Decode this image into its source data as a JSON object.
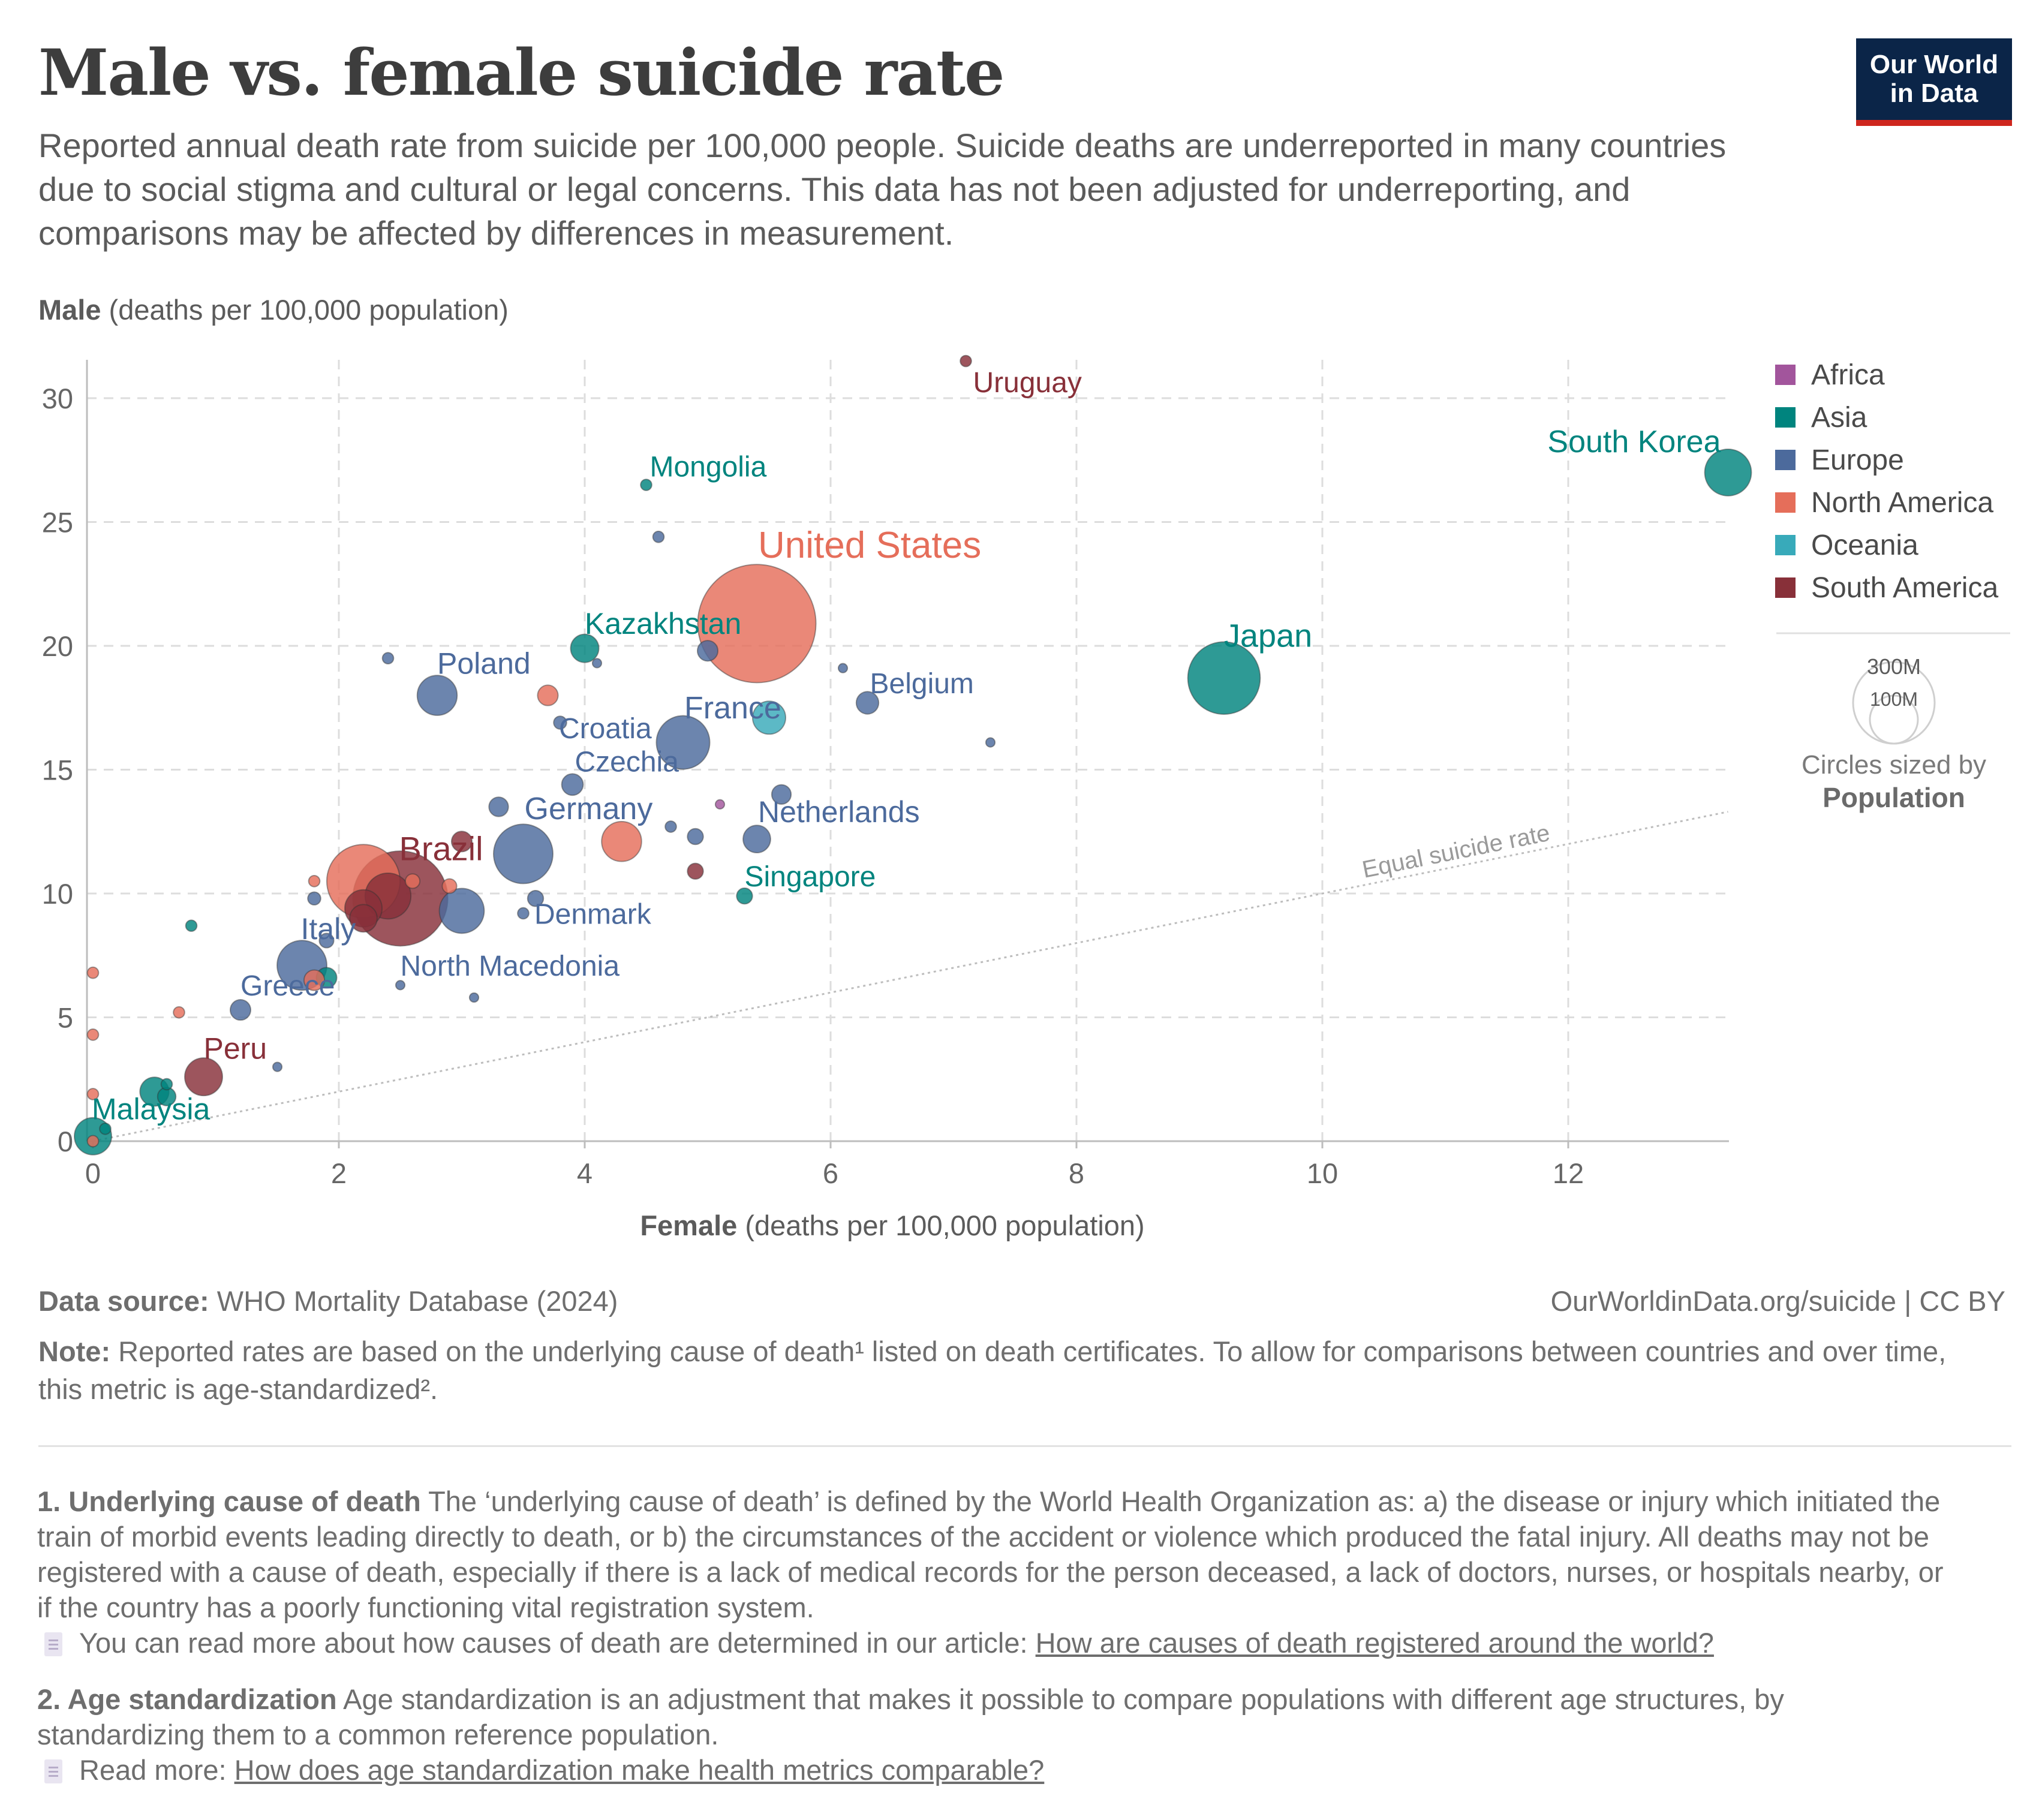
{
  "title": "Male vs. female suicide rate",
  "subtitle": "Reported annual death rate from suicide per 100,000 people. Suicide deaths are underreported in many countries due to social stigma and cultural or legal concerns. This data has not been adjusted for underreporting, and comparisons may be affected by differences in measurement.",
  "logo": {
    "line1": "Our World",
    "line2": "in Data"
  },
  "chart_data": {
    "type": "scatter",
    "ylabel_bold": "Male",
    "ylabel_rest": " (deaths per 100,000 population)",
    "xlabel_bold": "Female",
    "xlabel_rest": " (deaths per 100,000 population)",
    "xlim": [
      0,
      13.3
    ],
    "ylim": [
      0,
      31.5
    ],
    "xticks": [
      0,
      2,
      4,
      6,
      8,
      10,
      12
    ],
    "yticks": [
      0,
      5,
      10,
      15,
      20,
      25,
      30
    ],
    "grid": true,
    "equal_line_label": "Equal suicide rate",
    "legend_position": "right",
    "legend": [
      {
        "name": "Africa",
        "color": "#a2559c"
      },
      {
        "name": "Asia",
        "color": "#00847e"
      },
      {
        "name": "Europe",
        "color": "#4c6a9c"
      },
      {
        "name": "North America",
        "color": "#e56e5a"
      },
      {
        "name": "Oceania",
        "color": "#38aaba"
      },
      {
        "name": "South America",
        "color": "#883039"
      }
    ],
    "size_legend": {
      "big": "300M",
      "small": "100M",
      "caption1": "Circles sized by",
      "caption2": "Population"
    },
    "points": [
      {
        "label": "Uruguay",
        "x": 7.1,
        "y": 31.5,
        "region": "South America",
        "pop": 3
      },
      {
        "label": "South Korea",
        "x": 13.3,
        "y": 27.0,
        "region": "Asia",
        "pop": 52
      },
      {
        "label": "Mongolia",
        "x": 4.5,
        "y": 26.5,
        "region": "Asia",
        "pop": 3
      },
      {
        "label": "",
        "x": 4.6,
        "y": 24.4,
        "region": "Europe",
        "pop": 3
      },
      {
        "label": "United States",
        "x": 5.4,
        "y": 20.9,
        "region": "North America",
        "pop": 333
      },
      {
        "label": "Kazakhstan",
        "x": 4.0,
        "y": 19.9,
        "region": "Asia",
        "pop": 19
      },
      {
        "label": "",
        "x": 5.0,
        "y": 19.8,
        "region": "Europe",
        "pop": 10
      },
      {
        "label": "",
        "x": 4.1,
        "y": 19.3,
        "region": "Europe",
        "pop": 2
      },
      {
        "label": "",
        "x": 2.4,
        "y": 19.5,
        "region": "Europe",
        "pop": 3
      },
      {
        "label": "",
        "x": 6.1,
        "y": 19.1,
        "region": "Europe",
        "pop": 2
      },
      {
        "label": "Japan",
        "x": 9.2,
        "y": 18.7,
        "region": "Asia",
        "pop": 125
      },
      {
        "label": "Poland",
        "x": 2.8,
        "y": 18.0,
        "region": "Europe",
        "pop": 38
      },
      {
        "label": "",
        "x": 3.7,
        "y": 18.0,
        "region": "North America",
        "pop": 10
      },
      {
        "label": "Belgium",
        "x": 6.3,
        "y": 17.7,
        "region": "Europe",
        "pop": 12
      },
      {
        "label": "Croatia",
        "x": 3.8,
        "y": 16.9,
        "region": "Europe",
        "pop": 4
      },
      {
        "label": "",
        "x": 5.5,
        "y": 17.1,
        "region": "Oceania",
        "pop": 26
      },
      {
        "label": "France",
        "x": 4.8,
        "y": 16.1,
        "region": "Europe",
        "pop": 68
      },
      {
        "label": "",
        "x": 7.3,
        "y": 16.1,
        "region": "Europe",
        "pop": 2
      },
      {
        "label": "Czechia",
        "x": 3.9,
        "y": 14.4,
        "region": "Europe",
        "pop": 11
      },
      {
        "label": "",
        "x": 5.6,
        "y": 14.0,
        "region": "Europe",
        "pop": 9
      },
      {
        "label": "",
        "x": 5.1,
        "y": 13.6,
        "region": "Africa",
        "pop": 2
      },
      {
        "label": "",
        "x": 3.3,
        "y": 13.5,
        "region": "Europe",
        "pop": 9
      },
      {
        "label": "Netherlands",
        "x": 5.4,
        "y": 12.2,
        "region": "Europe",
        "pop": 18
      },
      {
        "label": "",
        "x": 4.3,
        "y": 12.1,
        "region": "North America",
        "pop": 38
      },
      {
        "label": "",
        "x": 4.9,
        "y": 12.3,
        "region": "Europe",
        "pop": 6
      },
      {
        "label": "",
        "x": 4.7,
        "y": 12.7,
        "region": "Europe",
        "pop": 3
      },
      {
        "label": "",
        "x": 3.0,
        "y": 12.1,
        "region": "South America",
        "pop": 10
      },
      {
        "label": "Germany",
        "x": 3.5,
        "y": 11.6,
        "region": "Europe",
        "pop": 84
      },
      {
        "label": "Brazil",
        "x": 2.5,
        "y": 9.8,
        "region": "South America",
        "pop": 215
      },
      {
        "label": "",
        "x": 2.2,
        "y": 10.5,
        "region": "North America",
        "pop": 128
      },
      {
        "label": "",
        "x": 2.4,
        "y": 9.9,
        "region": "South America",
        "pop": 50
      },
      {
        "label": "",
        "x": 2.2,
        "y": 9.4,
        "region": "South America",
        "pop": 33
      },
      {
        "label": "",
        "x": 2.2,
        "y": 9.0,
        "region": "South America",
        "pop": 18
      },
      {
        "label": "",
        "x": 2.6,
        "y": 10.5,
        "region": "North America",
        "pop": 5
      },
      {
        "label": "",
        "x": 2.9,
        "y": 10.3,
        "region": "North America",
        "pop": 5
      },
      {
        "label": "",
        "x": 3.0,
        "y": 9.3,
        "region": "Europe",
        "pop": 48
      },
      {
        "label": "Denmark",
        "x": 3.6,
        "y": 9.8,
        "region": "Europe",
        "pop": 6
      },
      {
        "label": "",
        "x": 3.5,
        "y": 9.2,
        "region": "Europe",
        "pop": 3
      },
      {
        "label": "",
        "x": 4.9,
        "y": 10.9,
        "region": "South America",
        "pop": 6
      },
      {
        "label": "Singapore",
        "x": 5.3,
        "y": 9.9,
        "region": "Asia",
        "pop": 6
      },
      {
        "label": "",
        "x": 1.8,
        "y": 9.8,
        "region": "Europe",
        "pop": 4
      },
      {
        "label": "",
        "x": 1.8,
        "y": 10.5,
        "region": "North America",
        "pop": 3
      },
      {
        "label": "",
        "x": 0.8,
        "y": 8.7,
        "region": "Asia",
        "pop": 3
      },
      {
        "label": "Italy",
        "x": 1.7,
        "y": 7.1,
        "region": "Europe",
        "pop": 59
      },
      {
        "label": "",
        "x": 1.9,
        "y": 6.6,
        "region": "Asia",
        "pop": 10
      },
      {
        "label": "",
        "x": 1.8,
        "y": 6.5,
        "region": "North America",
        "pop": 10
      },
      {
        "label": "",
        "x": 1.9,
        "y": 8.1,
        "region": "Europe",
        "pop": 5
      },
      {
        "label": "North Macedonia",
        "x": 2.5,
        "y": 6.3,
        "region": "Europe",
        "pop": 2
      },
      {
        "label": "",
        "x": 3.1,
        "y": 5.8,
        "region": "Europe",
        "pop": 2
      },
      {
        "label": "Greece",
        "x": 1.2,
        "y": 5.3,
        "region": "Europe",
        "pop": 10
      },
      {
        "label": "",
        "x": 0.7,
        "y": 5.2,
        "region": "North America",
        "pop": 3
      },
      {
        "label": "",
        "x": 0.0,
        "y": 6.8,
        "region": "North America",
        "pop": 3
      },
      {
        "label": "",
        "x": 0.0,
        "y": 4.3,
        "region": "North America",
        "pop": 3
      },
      {
        "label": "",
        "x": 1.5,
        "y": 3.0,
        "region": "Europe",
        "pop": 2
      },
      {
        "label": "Peru",
        "x": 0.9,
        "y": 2.6,
        "region": "South America",
        "pop": 34
      },
      {
        "label": "",
        "x": 0.5,
        "y": 2.0,
        "region": "Asia",
        "pop": 20
      },
      {
        "label": "",
        "x": 0.6,
        "y": 1.8,
        "region": "Asia",
        "pop": 8
      },
      {
        "label": "",
        "x": 0.6,
        "y": 2.3,
        "region": "Asia",
        "pop": 3
      },
      {
        "label": "",
        "x": 0.0,
        "y": 1.9,
        "region": "North America",
        "pop": 3
      },
      {
        "label": "",
        "x": 0.1,
        "y": 0.5,
        "region": "Asia",
        "pop": 3
      },
      {
        "label": "Malaysia",
        "x": 0.0,
        "y": 0.2,
        "region": "Asia",
        "pop": 33
      },
      {
        "label": "",
        "x": 0.0,
        "y": 0.0,
        "region": "North America",
        "pop": 3
      }
    ]
  },
  "footer": {
    "source_bold": "Data source:",
    "source_rest": " WHO Mortality Database (2024)",
    "url": "OurWorldinData.org/suicide | CC BY",
    "note_bold": "Note:",
    "note_rest": " Reported rates are based on the underlying cause of death¹ listed on death certificates. To allow for comparisons between countries and over time, this metric is age-standardized².",
    "fn1_bold": "1. Underlying cause of death",
    "fn1_rest": " The ‘underlying cause of death’ is defined by the World Health Organization as: a) the disease or injury which initiated the train of morbid events leading directly to death, or b) the circumstances of the accident or violence which produced the fatal injury. All deaths may not be registered with a cause of death, especially if there is a lack of medical records for the person deceased, a lack of doctors, nurses, or hospitals nearby, or if the country has a poorly functioning vital registration system.",
    "fn1_link_pre": "You can read more about how causes of death are determined in our article: ",
    "fn1_link": "How are causes of death registered around the world?",
    "fn2_bold": "2. Age standardization",
    "fn2_rest": " Age standardization is an adjustment that makes it possible to compare populations with different age structures, by standardizing them to a common reference population.",
    "fn2_link_pre": "Read more: ",
    "fn2_link": "How does age standardization make health metrics comparable?"
  }
}
